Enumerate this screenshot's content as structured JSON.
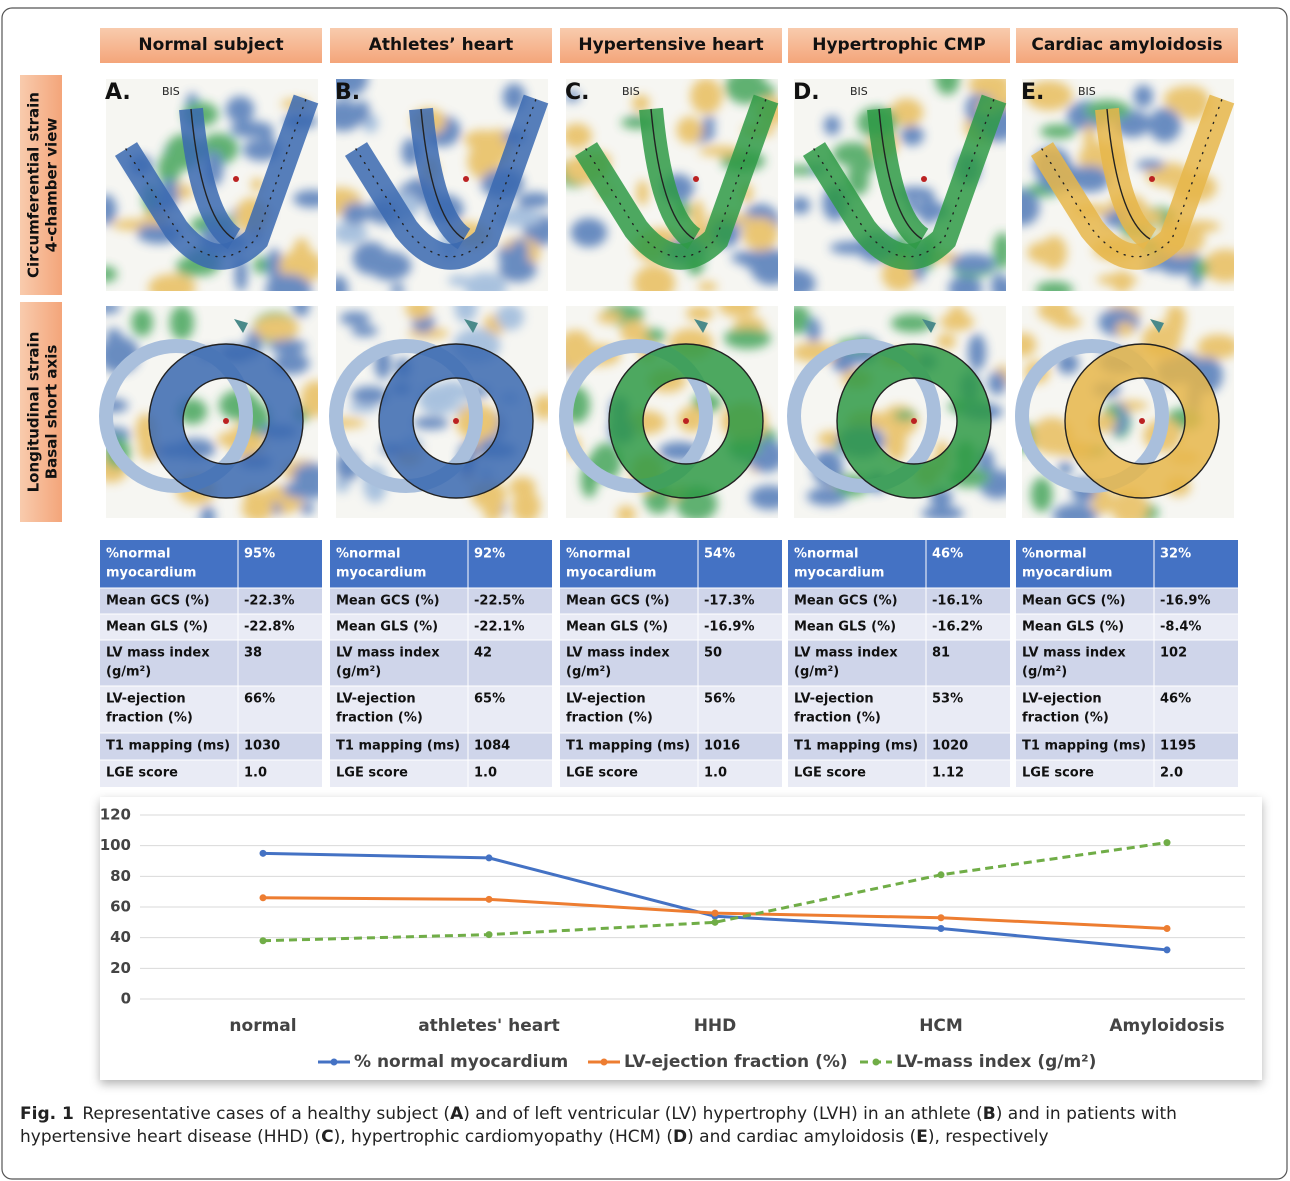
{
  "columns": [
    "Normal subject",
    "Athletes’ heart",
    "Hypertensive heart",
    "Hypertrophic CMP",
    "Cardiac amyloidosis"
  ],
  "row_labels": [
    [
      "Circumferential strain",
      "4-chamber view"
    ],
    [
      "Longitudinal strain",
      "Basal short axis"
    ]
  ],
  "panels": [
    {
      "letter": "A.",
      "marker": "BIS"
    },
    {
      "letter": "B."
    },
    {
      "letter": "C.",
      "marker": "BIS"
    },
    {
      "letter": "D.",
      "marker": "BIS"
    },
    {
      "letter": "E.",
      "marker": "BIS"
    }
  ],
  "tables": [
    {
      "header": [
        "%normal",
        "myocardium"
      ],
      "header_value": "95%",
      "rows": [
        {
          "label": [
            "Mean GCS (%)"
          ],
          "value": "-22.3%"
        },
        {
          "label": [
            "Mean GLS (%)"
          ],
          "value": "-22.8%"
        },
        {
          "label": [
            "LV mass index",
            "(g/m²)"
          ],
          "value": "38"
        },
        {
          "label": [
            "LV-ejection",
            "fraction (%)"
          ],
          "value": "66%"
        },
        {
          "label": [
            "T1 mapping (ms)"
          ],
          "value": "1030"
        },
        {
          "label": [
            "LGE score"
          ],
          "value": "1.0"
        }
      ]
    },
    {
      "header": [
        "%normal",
        "myocardium"
      ],
      "header_value": "92%",
      "rows": [
        {
          "label": [
            "Mean GCS (%)"
          ],
          "value": "-22.5%"
        },
        {
          "label": [
            "Mean GLS (%)"
          ],
          "value": "-22.1%"
        },
        {
          "label": [
            "LV mass index",
            "(g/m²)"
          ],
          "value": "42"
        },
        {
          "label": [
            "LV-ejection",
            "fraction (%)"
          ],
          "value": "65%"
        },
        {
          "label": [
            "T1 mapping (ms)"
          ],
          "value": "1084"
        },
        {
          "label": [
            "LGE score"
          ],
          "value": "1.0"
        }
      ]
    },
    {
      "header": [
        "%normal",
        "myocardium"
      ],
      "header_value": "54%",
      "rows": [
        {
          "label": [
            "Mean GCS (%)"
          ],
          "value": "-17.3%"
        },
        {
          "label": [
            "Mean GLS (%)"
          ],
          "value": "-16.9%"
        },
        {
          "label": [
            "LV mass index",
            "(g/m²)"
          ],
          "value": "50"
        },
        {
          "label": [
            "LV-ejection",
            "fraction (%)"
          ],
          "value": "56%"
        },
        {
          "label": [
            "T1 mapping (ms)"
          ],
          "value": "1016"
        },
        {
          "label": [
            "LGE score"
          ],
          "value": "1.0"
        }
      ]
    },
    {
      "header": [
        "%normal",
        "myocardium"
      ],
      "header_value": "46%",
      "rows": [
        {
          "label": [
            "Mean GCS (%)"
          ],
          "value": "-16.1%"
        },
        {
          "label": [
            "Mean GLS (%)"
          ],
          "value": "-16.2%"
        },
        {
          "label": [
            "LV mass index",
            "(g/m²)"
          ],
          "value": "81"
        },
        {
          "label": [
            "LV-ejection",
            "fraction (%)"
          ],
          "value": "53%"
        },
        {
          "label": [
            "T1 mapping (ms)"
          ],
          "value": "1020"
        },
        {
          "label": [
            "LGE score"
          ],
          "value": "1.12"
        }
      ]
    },
    {
      "header": [
        "%normal",
        "myocardium"
      ],
      "header_value": "32%",
      "rows": [
        {
          "label": [
            "Mean GCS (%)"
          ],
          "value": "-16.9%"
        },
        {
          "label": [
            "Mean GLS (%)"
          ],
          "value": "-8.4%"
        },
        {
          "label": [
            "LV mass index",
            "(g/m²)"
          ],
          "value": "102"
        },
        {
          "label": [
            "LV-ejection",
            "fraction (%)"
          ],
          "value": "46%"
        },
        {
          "label": [
            "T1 mapping (ms)"
          ],
          "value": "1195"
        },
        {
          "label": [
            "LGE score"
          ],
          "value": "2.0"
        }
      ]
    }
  ],
  "chart_data": {
    "type": "line",
    "categories": [
      "normal",
      "athletes' heart",
      "HHD",
      "HCM",
      "Amyloidosis"
    ],
    "series": [
      {
        "name": "% normal myocardium",
        "color": "#4472c4",
        "dashed": false,
        "values": [
          95,
          92,
          54,
          46,
          32
        ]
      },
      {
        "name": "LV-ejection fraction (%)",
        "color": "#ed7d31",
        "dashed": false,
        "values": [
          66,
          65,
          56,
          53,
          46
        ]
      },
      {
        "name": "LV-mass index (g/m²)",
        "color": "#70ad47",
        "dashed": true,
        "values": [
          38,
          42,
          50,
          81,
          102
        ]
      }
    ],
    "ylim": [
      0,
      120
    ],
    "yticks": [
      0,
      20,
      40,
      60,
      80,
      100,
      120
    ],
    "grid": true,
    "legend": "bottom"
  },
  "caption": {
    "label": "Fig. 1",
    "segments": [
      "Representative cases of a healthy subject (",
      "A",
      ") and of left ventricular (LV) hypertrophy (LVH) in an athlete (",
      "B",
      ") and in patients with hypertensive heart disease (HHD) (",
      "C",
      "), hypertrophic cardiomyopathy (HCM) (",
      "D",
      ") and cardiac amyloidosis (",
      "E",
      "), respectively"
    ]
  }
}
